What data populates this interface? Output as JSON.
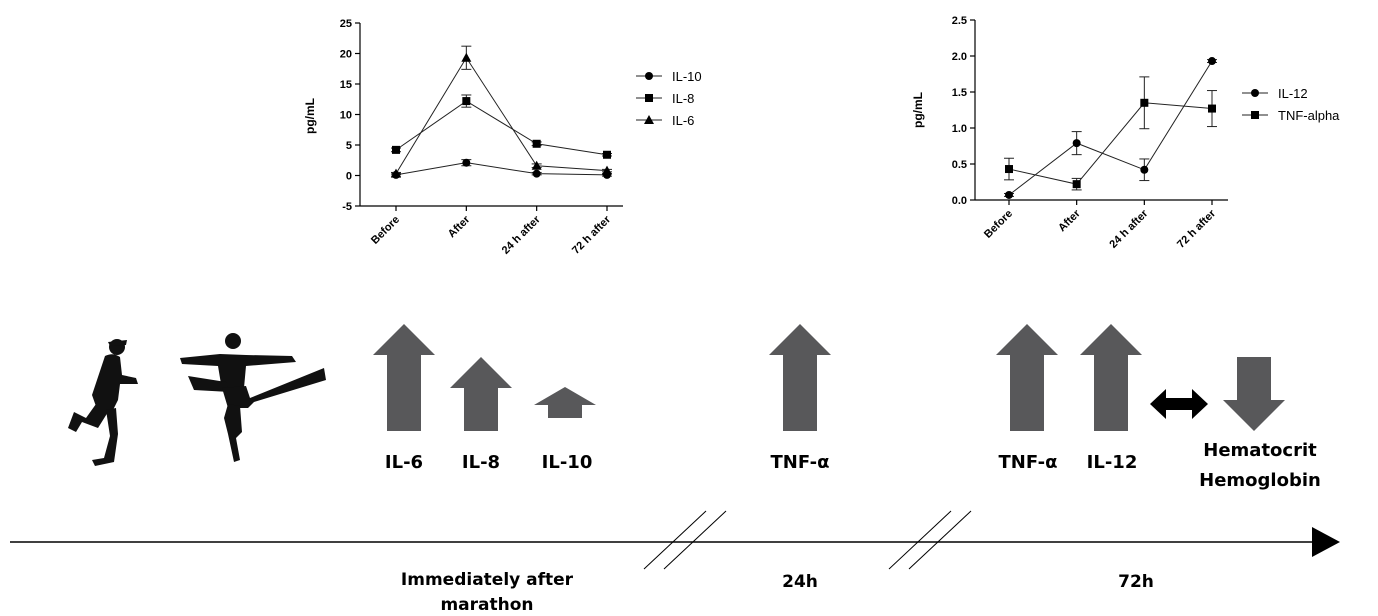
{
  "chart_data": [
    {
      "type": "line",
      "categories": [
        "Before",
        "After",
        "24 h after",
        "72 h after"
      ],
      "ylabel": "pg/mL",
      "ylim": [
        -5,
        25
      ],
      "yticks": [
        "25",
        "20",
        "15",
        "10",
        "5",
        "0",
        "-5"
      ],
      "legend_position": "right",
      "series": [
        {
          "name": "IL-10",
          "marker": "circle",
          "values": [
            0.1,
            2.1,
            0.3,
            0.1
          ],
          "errors": [
            0.3,
            0.5,
            0.2,
            0.2
          ]
        },
        {
          "name": "IL-8",
          "marker": "square",
          "values": [
            4.2,
            12.2,
            5.2,
            3.4
          ],
          "errors": [
            0.3,
            1.0,
            0.3,
            0.2
          ]
        },
        {
          "name": "IL-6",
          "marker": "triangle",
          "values": [
            0.3,
            19.3,
            1.6,
            0.8
          ],
          "errors": [
            0.2,
            1.9,
            0.3,
            0.2
          ]
        }
      ]
    },
    {
      "type": "line",
      "categories": [
        "Before",
        "After",
        "24 h after",
        "72 h after"
      ],
      "ylabel": "pg/mL",
      "ylim": [
        0,
        2.5
      ],
      "yticks": [
        "2.5",
        "2.0",
        "1.5",
        "1.0",
        "0.5",
        "0.0"
      ],
      "legend_position": "right",
      "series": [
        {
          "name": "IL-12",
          "marker": "circle",
          "values": [
            0.07,
            0.79,
            0.42,
            1.93
          ],
          "errors": [
            0.02,
            0.16,
            0.15,
            0.02
          ]
        },
        {
          "name": "TNF-alpha",
          "marker": "square",
          "values": [
            0.43,
            0.22,
            1.35,
            1.27
          ],
          "errors": [
            0.15,
            0.08,
            0.36,
            0.25
          ]
        }
      ]
    }
  ],
  "diagram": {
    "arrow_color": "#58585a",
    "labels": {
      "il6": "IL-6",
      "il8": "IL-8",
      "il10": "IL-10",
      "tnf24": "TNF-α",
      "tnf72": "TNF-α",
      "il12": "IL-12",
      "hematocrit": "Hematocrit",
      "hemoglobin": "Hemoglobin"
    },
    "timeline": {
      "immediately_line1": "Immediately after",
      "immediately_line2": "marathon",
      "t24": "24h",
      "t72": "72h"
    }
  }
}
